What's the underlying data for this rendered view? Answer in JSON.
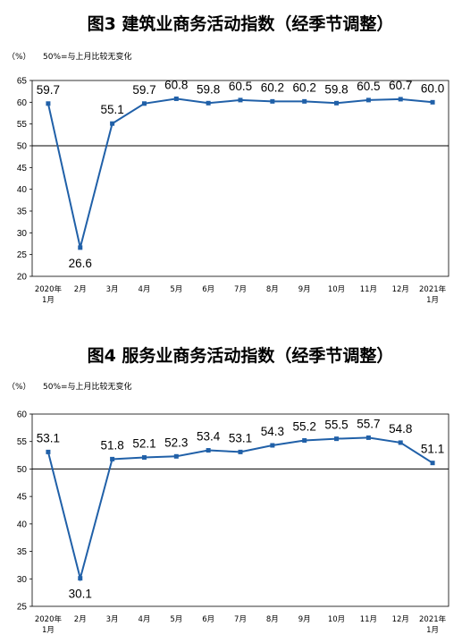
{
  "chart_data": [
    {
      "type": "line",
      "title": "图3  建筑业商务活动指数（经季节调整）",
      "unit": "（%）",
      "note": "50%=与上月比较无变化",
      "categories": [
        "2020年|1月",
        "2月",
        "3月",
        "4月",
        "5月",
        "6月",
        "7月",
        "8月",
        "9月",
        "10月",
        "11月",
        "12月",
        "2021年|1月"
      ],
      "values": [
        59.7,
        26.6,
        55.1,
        59.7,
        60.8,
        59.8,
        60.5,
        60.2,
        60.2,
        59.8,
        60.5,
        60.7,
        60.0
      ],
      "yticks": [
        "20",
        "25",
        "30",
        "35",
        "40",
        "45",
        "50",
        "55",
        "60",
        "65"
      ],
      "ylim": [
        20,
        65
      ],
      "reference_line": 50,
      "color": "#2060a8"
    },
    {
      "type": "line",
      "title": "图4  服务业商务活动指数（经季节调整）",
      "unit": "（%）",
      "note": "50%=与上月比较无变化",
      "categories": [
        "2020年|1月",
        "2月",
        "3月",
        "4月",
        "5月",
        "6月",
        "7月",
        "8月",
        "9月",
        "10月",
        "11月",
        "12月",
        "2021年|1月"
      ],
      "values": [
        53.1,
        30.1,
        51.8,
        52.1,
        52.3,
        53.4,
        53.1,
        54.3,
        55.2,
        55.5,
        55.7,
        54.8,
        51.1
      ],
      "yticks": [
        "25",
        "30",
        "35",
        "40",
        "45",
        "50",
        "55",
        "60"
      ],
      "ylim": [
        25,
        60
      ],
      "reference_line": 50,
      "color": "#2060a8"
    }
  ]
}
